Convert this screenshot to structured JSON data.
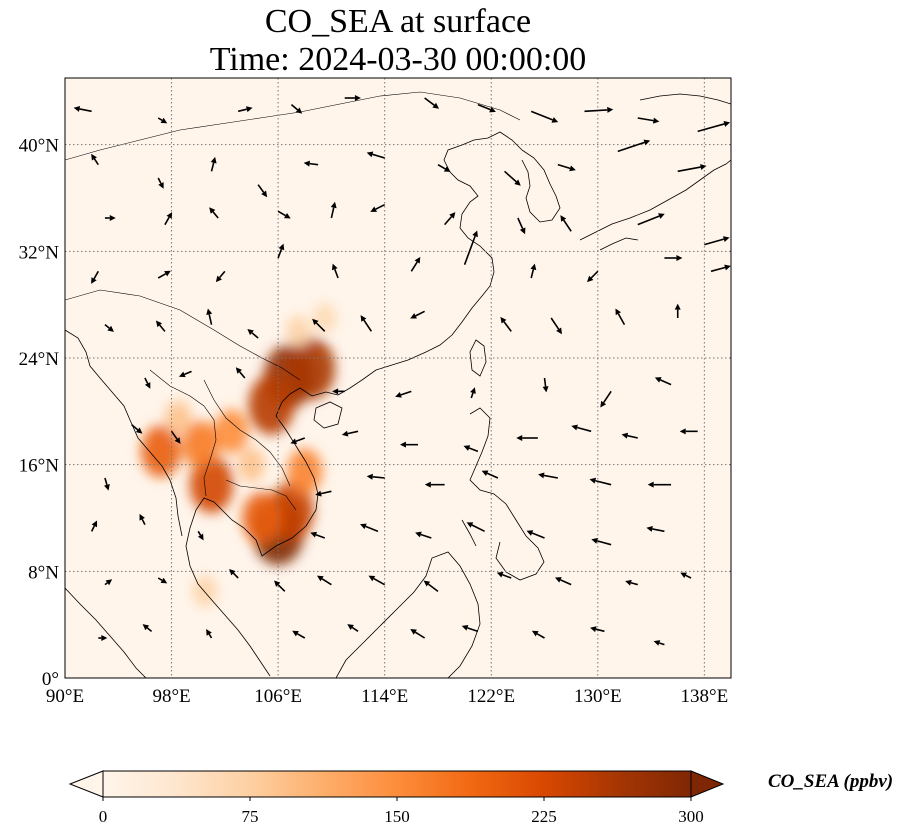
{
  "title": {
    "line1": "CO_SEA at surface",
    "line2": "Time: 2024-03-30 00:00:00"
  },
  "map": {
    "lon_range": [
      90,
      140
    ],
    "lat_range": [
      0,
      45
    ],
    "lon_ticks": [
      {
        "value": 90,
        "label": "90°E"
      },
      {
        "value": 98,
        "label": "98°E"
      },
      {
        "value": 106,
        "label": "106°E"
      },
      {
        "value": 114,
        "label": "114°E"
      },
      {
        "value": 122,
        "label": "122°E"
      },
      {
        "value": 130,
        "label": "130°E"
      },
      {
        "value": 138,
        "label": "138°E"
      }
    ],
    "lat_ticks": [
      {
        "value": 0,
        "label": "0°"
      },
      {
        "value": 8,
        "label": "8°N"
      },
      {
        "value": 16,
        "label": "16°N"
      },
      {
        "value": 24,
        "label": "24°N"
      },
      {
        "value": 32,
        "label": "32°N"
      },
      {
        "value": 40,
        "label": "40°N"
      }
    ],
    "gridlines": true,
    "background_color": "#fff5eb",
    "coastline_color": "#000000"
  },
  "colorbar": {
    "label": "CO_SEA (ppbv)",
    "min": 0,
    "max": 300,
    "extend": "both",
    "colormap": "OrRd",
    "ticks": [
      {
        "value": 0,
        "label": "0"
      },
      {
        "value": 75,
        "label": "75"
      },
      {
        "value": 150,
        "label": "150"
      },
      {
        "value": 225,
        "label": "225"
      },
      {
        "value": 300,
        "label": "300"
      }
    ],
    "stops": [
      "#fff5eb",
      "#fee6ce",
      "#fdd0a2",
      "#fdae6b",
      "#fd8d3c",
      "#f16913",
      "#d94801",
      "#a63603",
      "#7f2704"
    ]
  },
  "plumes": [
    {
      "lon": 106.8,
      "lat": 22.6,
      "value": 280
    },
    {
      "lon": 108.5,
      "lat": 23.2,
      "value": 260
    },
    {
      "lon": 105.5,
      "lat": 20.5,
      "value": 250
    },
    {
      "lon": 106.0,
      "lat": 11.0,
      "value": 300
    },
    {
      "lon": 107.0,
      "lat": 12.5,
      "value": 240
    },
    {
      "lon": 104.8,
      "lat": 12.0,
      "value": 200
    },
    {
      "lon": 101.0,
      "lat": 14.5,
      "value": 230
    },
    {
      "lon": 100.2,
      "lat": 17.5,
      "value": 170
    },
    {
      "lon": 102.5,
      "lat": 18.5,
      "value": 150
    },
    {
      "lon": 97.2,
      "lat": 17.0,
      "value": 200
    },
    {
      "lon": 108.0,
      "lat": 15.5,
      "value": 160
    },
    {
      "lon": 107.5,
      "lat": 26.0,
      "value": 70
    },
    {
      "lon": 109.5,
      "lat": 27.0,
      "value": 60
    },
    {
      "lon": 98.5,
      "lat": 19.5,
      "value": 90
    },
    {
      "lon": 104.0,
      "lat": 16.0,
      "value": 90
    },
    {
      "lon": 100.5,
      "lat": 6.5,
      "value": 70
    }
  ],
  "wind": [
    {
      "lon": 92.0,
      "lat": 42.5,
      "u": -1.0,
      "v": 0.2
    },
    {
      "lon": 97.0,
      "lat": 42.0,
      "u": 0.5,
      "v": -0.3
    },
    {
      "lon": 103.0,
      "lat": 42.5,
      "u": 0.8,
      "v": 0.2
    },
    {
      "lon": 107.0,
      "lat": 43.0,
      "u": 0.6,
      "v": -0.5
    },
    {
      "lon": 111.0,
      "lat": 43.5,
      "u": 0.9,
      "v": 0.0
    },
    {
      "lon": 117.0,
      "lat": 43.5,
      "u": 0.8,
      "v": -0.6
    },
    {
      "lon": 121.0,
      "lat": 43.0,
      "u": 1.0,
      "v": -0.4
    },
    {
      "lon": 125.0,
      "lat": 42.5,
      "u": 1.5,
      "v": -0.6
    },
    {
      "lon": 129.0,
      "lat": 42.5,
      "u": 1.6,
      "v": 0.1
    },
    {
      "lon": 133.0,
      "lat": 42.0,
      "u": 1.2,
      "v": -0.2
    },
    {
      "lon": 137.5,
      "lat": 41.0,
      "u": 1.8,
      "v": 0.5
    },
    {
      "lon": 92.5,
      "lat": 38.5,
      "u": -0.4,
      "v": 0.6
    },
    {
      "lon": 97.0,
      "lat": 37.5,
      "u": 0.3,
      "v": -0.6
    },
    {
      "lon": 101.0,
      "lat": 38.0,
      "u": 0.2,
      "v": 0.8
    },
    {
      "lon": 104.5,
      "lat": 37.0,
      "u": 0.5,
      "v": -0.7
    },
    {
      "lon": 109.0,
      "lat": 38.5,
      "u": -0.8,
      "v": 0.1
    },
    {
      "lon": 114.0,
      "lat": 39.0,
      "u": -1.0,
      "v": 0.3
    },
    {
      "lon": 118.0,
      "lat": 38.5,
      "u": 0.7,
      "v": -0.4
    },
    {
      "lon": 123.0,
      "lat": 38.0,
      "u": 0.9,
      "v": -0.8
    },
    {
      "lon": 127.0,
      "lat": 38.5,
      "u": 1.0,
      "v": -0.3
    },
    {
      "lon": 131.5,
      "lat": 39.5,
      "u": 1.8,
      "v": 0.6
    },
    {
      "lon": 136.0,
      "lat": 38.0,
      "u": 1.6,
      "v": 0.3
    },
    {
      "lon": 93.0,
      "lat": 34.5,
      "u": 0.6,
      "v": 0.0
    },
    {
      "lon": 97.5,
      "lat": 34.0,
      "u": 0.4,
      "v": 0.7
    },
    {
      "lon": 101.5,
      "lat": 34.5,
      "u": -0.5,
      "v": 0.6
    },
    {
      "lon": 106.0,
      "lat": 35.0,
      "u": 0.7,
      "v": -0.4
    },
    {
      "lon": 110.0,
      "lat": 34.5,
      "u": 0.2,
      "v": 0.9
    },
    {
      "lon": 114.0,
      "lat": 35.5,
      "u": -0.8,
      "v": -0.4
    },
    {
      "lon": 118.5,
      "lat": 34.0,
      "u": 0.6,
      "v": 0.7
    },
    {
      "lon": 124.0,
      "lat": 34.5,
      "u": 0.4,
      "v": -0.9
    },
    {
      "lon": 128.0,
      "lat": 33.5,
      "u": -0.6,
      "v": 0.9
    },
    {
      "lon": 133.0,
      "lat": 34.0,
      "u": 1.5,
      "v": 0.6
    },
    {
      "lon": 138.0,
      "lat": 32.5,
      "u": 1.4,
      "v": 0.4
    },
    {
      "lon": 92.5,
      "lat": 30.5,
      "u": -0.4,
      "v": -0.7
    },
    {
      "lon": 97.0,
      "lat": 30.0,
      "u": 0.7,
      "v": 0.4
    },
    {
      "lon": 102.0,
      "lat": 30.5,
      "u": -0.5,
      "v": -0.6
    },
    {
      "lon": 106.0,
      "lat": 31.5,
      "u": 0.3,
      "v": 0.8
    },
    {
      "lon": 110.5,
      "lat": 30.0,
      "u": -0.3,
      "v": 0.8
    },
    {
      "lon": 116.0,
      "lat": 30.5,
      "u": 0.5,
      "v": 0.8
    },
    {
      "lon": 120.0,
      "lat": 31.0,
      "u": 0.7,
      "v": 1.9
    },
    {
      "lon": 125.0,
      "lat": 30.0,
      "u": 0.2,
      "v": 0.8
    },
    {
      "lon": 130.0,
      "lat": 30.5,
      "u": -0.6,
      "v": -0.6
    },
    {
      "lon": 135.0,
      "lat": 31.5,
      "u": 1.0,
      "v": 0.0
    },
    {
      "lon": 138.5,
      "lat": 30.5,
      "u": 1.1,
      "v": 0.3
    },
    {
      "lon": 93.0,
      "lat": 26.5,
      "u": 0.5,
      "v": -0.4
    },
    {
      "lon": 97.5,
      "lat": 26.0,
      "u": -0.5,
      "v": 0.6
    },
    {
      "lon": 101.0,
      "lat": 26.5,
      "u": -0.2,
      "v": 0.9
    },
    {
      "lon": 104.5,
      "lat": 25.5,
      "u": -0.6,
      "v": 0.5
    },
    {
      "lon": 109.5,
      "lat": 26.0,
      "u": -0.7,
      "v": 0.7
    },
    {
      "lon": 113.0,
      "lat": 26.0,
      "u": -0.6,
      "v": 0.9
    },
    {
      "lon": 117.0,
      "lat": 27.5,
      "u": -0.8,
      "v": -0.4
    },
    {
      "lon": 123.5,
      "lat": 26.0,
      "u": -0.6,
      "v": 0.8
    },
    {
      "lon": 126.5,
      "lat": 27.0,
      "u": 0.6,
      "v": -0.9
    },
    {
      "lon": 132.0,
      "lat": 26.5,
      "u": -0.5,
      "v": 0.9
    },
    {
      "lon": 136.0,
      "lat": 27.0,
      "u": 0.0,
      "v": 0.8
    },
    {
      "lon": 96.0,
      "lat": 22.5,
      "u": 0.3,
      "v": -0.6
    },
    {
      "lon": 99.5,
      "lat": 23.0,
      "u": -0.7,
      "v": -0.3
    },
    {
      "lon": 103.5,
      "lat": 22.5,
      "u": -0.5,
      "v": 0.6
    },
    {
      "lon": 111.0,
      "lat": 21.5,
      "u": -0.7,
      "v": 0.0
    },
    {
      "lon": 116.0,
      "lat": 21.5,
      "u": -0.9,
      "v": -0.3
    },
    {
      "lon": 120.5,
      "lat": 21.0,
      "u": 0.2,
      "v": 0.6
    },
    {
      "lon": 126.0,
      "lat": 22.5,
      "u": 0.1,
      "v": -0.8
    },
    {
      "lon": 131.0,
      "lat": 21.5,
      "u": -0.6,
      "v": -0.9
    },
    {
      "lon": 135.5,
      "lat": 22.0,
      "u": -0.9,
      "v": 0.4
    },
    {
      "lon": 95.0,
      "lat": 19.0,
      "u": 0.6,
      "v": -0.5
    },
    {
      "lon": 98.0,
      "lat": 18.5,
      "u": 0.5,
      "v": -0.7
    },
    {
      "lon": 108.0,
      "lat": 18.0,
      "u": -0.8,
      "v": -0.3
    },
    {
      "lon": 112.0,
      "lat": 18.5,
      "u": -0.9,
      "v": -0.2
    },
    {
      "lon": 116.5,
      "lat": 17.5,
      "u": -1.0,
      "v": 0.0
    },
    {
      "lon": 121.0,
      "lat": 17.0,
      "u": -0.8,
      "v": 0.3
    },
    {
      "lon": 125.5,
      "lat": 18.0,
      "u": -1.2,
      "v": 0.0
    },
    {
      "lon": 129.5,
      "lat": 18.5,
      "u": -1.1,
      "v": 0.3
    },
    {
      "lon": 133.0,
      "lat": 18.0,
      "u": -0.9,
      "v": 0.2
    },
    {
      "lon": 137.5,
      "lat": 18.5,
      "u": -1.0,
      "v": 0.0
    },
    {
      "lon": 93.0,
      "lat": 15.0,
      "u": 0.2,
      "v": -0.7
    },
    {
      "lon": 110.0,
      "lat": 14.0,
      "u": -0.9,
      "v": -0.2
    },
    {
      "lon": 114.0,
      "lat": 15.0,
      "u": -1.0,
      "v": 0.1
    },
    {
      "lon": 118.5,
      "lat": 14.5,
      "u": -1.1,
      "v": 0.0
    },
    {
      "lon": 122.5,
      "lat": 15.0,
      "u": -0.9,
      "v": 0.4
    },
    {
      "lon": 127.0,
      "lat": 15.0,
      "u": -1.1,
      "v": 0.2
    },
    {
      "lon": 131.0,
      "lat": 14.5,
      "u": -1.2,
      "v": 0.3
    },
    {
      "lon": 135.5,
      "lat": 14.5,
      "u": -1.3,
      "v": 0.0
    },
    {
      "lon": 92.0,
      "lat": 11.0,
      "u": 0.3,
      "v": 0.6
    },
    {
      "lon": 96.0,
      "lat": 11.5,
      "u": -0.3,
      "v": 0.6
    },
    {
      "lon": 100.0,
      "lat": 11.0,
      "u": 0.3,
      "v": -0.5
    },
    {
      "lon": 109.5,
      "lat": 10.5,
      "u": -0.8,
      "v": 0.3
    },
    {
      "lon": 113.5,
      "lat": 11.0,
      "u": -1.0,
      "v": 0.4
    },
    {
      "lon": 117.5,
      "lat": 10.5,
      "u": -0.9,
      "v": 0.3
    },
    {
      "lon": 121.5,
      "lat": 11.0,
      "u": -1.0,
      "v": 0.5
    },
    {
      "lon": 126.0,
      "lat": 10.5,
      "u": -1.0,
      "v": 0.4
    },
    {
      "lon": 131.0,
      "lat": 10.0,
      "u": -1.1,
      "v": 0.3
    },
    {
      "lon": 135.0,
      "lat": 11.0,
      "u": -1.0,
      "v": 0.2
    },
    {
      "lon": 93.0,
      "lat": 7.0,
      "u": 0.4,
      "v": 0.3
    },
    {
      "lon": 97.0,
      "lat": 7.5,
      "u": 0.5,
      "v": -0.3
    },
    {
      "lon": 103.0,
      "lat": 7.5,
      "u": -0.5,
      "v": 0.5
    },
    {
      "lon": 106.5,
      "lat": 6.5,
      "u": -0.6,
      "v": 0.6
    },
    {
      "lon": 110.0,
      "lat": 7.0,
      "u": -0.8,
      "v": 0.5
    },
    {
      "lon": 114.0,
      "lat": 7.0,
      "u": -0.9,
      "v": 0.5
    },
    {
      "lon": 118.0,
      "lat": 6.5,
      "u": -0.8,
      "v": 0.6
    },
    {
      "lon": 123.5,
      "lat": 7.5,
      "u": -0.8,
      "v": 0.3
    },
    {
      "lon": 128.0,
      "lat": 7.0,
      "u": -0.9,
      "v": 0.4
    },
    {
      "lon": 133.0,
      "lat": 7.0,
      "u": -0.7,
      "v": 0.2
    },
    {
      "lon": 137.0,
      "lat": 7.5,
      "u": -0.6,
      "v": 0.3
    },
    {
      "lon": 92.5,
      "lat": 3.0,
      "u": 0.5,
      "v": 0.0
    },
    {
      "lon": 96.5,
      "lat": 3.5,
      "u": -0.5,
      "v": 0.4
    },
    {
      "lon": 101.0,
      "lat": 3.0,
      "u": -0.3,
      "v": 0.5
    },
    {
      "lon": 108.0,
      "lat": 3.0,
      "u": -0.7,
      "v": 0.4
    },
    {
      "lon": 112.0,
      "lat": 3.5,
      "u": -0.6,
      "v": 0.4
    },
    {
      "lon": 117.0,
      "lat": 3.0,
      "u": -0.8,
      "v": 0.5
    },
    {
      "lon": 121.0,
      "lat": 3.5,
      "u": -0.9,
      "v": 0.3
    },
    {
      "lon": 126.0,
      "lat": 3.0,
      "u": -0.7,
      "v": 0.4
    },
    {
      "lon": 130.5,
      "lat": 3.5,
      "u": -0.8,
      "v": 0.2
    },
    {
      "lon": 135.0,
      "lat": 2.5,
      "u": -0.6,
      "v": 0.2
    }
  ]
}
